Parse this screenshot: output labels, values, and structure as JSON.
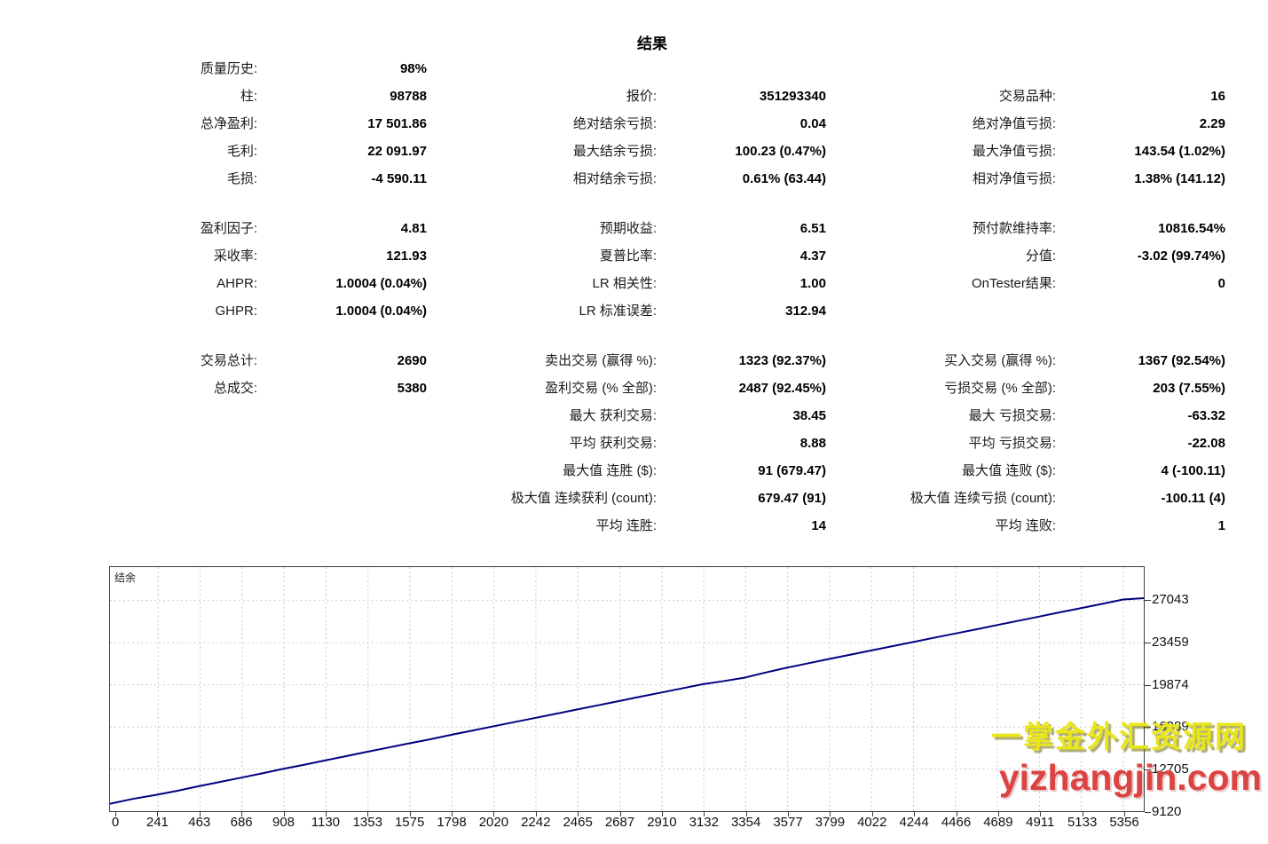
{
  "title": "结果",
  "stats": {
    "rows": [
      [
        "质量历史:",
        "98%",
        "",
        "",
        "",
        ""
      ],
      [
        "柱:",
        "98788",
        "报价:",
        "351293340",
        "交易品种:",
        "16"
      ],
      [
        "总净盈利:",
        "17 501.86",
        "绝对结余亏损:",
        "0.04",
        "绝对净值亏损:",
        "2.29"
      ],
      [
        "毛利:",
        "22 091.97",
        "最大结余亏损:",
        "100.23 (0.47%)",
        "最大净值亏损:",
        "143.54 (1.02%)"
      ],
      [
        "毛损:",
        "-4 590.11",
        "相对结余亏损:",
        "0.61% (63.44)",
        "相对净值亏损:",
        "1.38% (141.12)"
      ],
      null,
      [
        "盈利因子:",
        "4.81",
        "预期收益:",
        "6.51",
        "预付款维持率:",
        "10816.54%"
      ],
      [
        "采收率:",
        "121.93",
        "夏普比率:",
        "4.37",
        "分值:",
        "-3.02 (99.74%)"
      ],
      [
        "AHPR:",
        "1.0004 (0.04%)",
        "LR 相关性:",
        "1.00",
        "OnTester结果:",
        "0"
      ],
      [
        "GHPR:",
        "1.0004 (0.04%)",
        "LR 标准误差:",
        "312.94",
        "",
        ""
      ],
      null,
      [
        "交易总计:",
        "2690",
        "卖出交易 (赢得 %):",
        "1323 (92.37%)",
        "买入交易 (赢得 %):",
        "1367 (92.54%)"
      ],
      [
        "总成交:",
        "5380",
        "盈利交易 (% 全部):",
        "2487 (92.45%)",
        "亏损交易 (% 全部):",
        "203 (7.55%)"
      ],
      [
        "",
        "",
        "最大 获利交易:",
        "38.45",
        "最大 亏损交易:",
        "-63.32"
      ],
      [
        "",
        "",
        "平均 获利交易:",
        "8.88",
        "平均 亏损交易:",
        "-22.08"
      ],
      [
        "",
        "",
        "最大值 连胜 ($):",
        "91 (679.47)",
        "最大值 连败 ($):",
        "4 (-100.11)"
      ],
      [
        "",
        "",
        "极大值 连续获利 (count):",
        "679.47 (91)",
        "极大值 连续亏损 (count):",
        "-100.11 (4)"
      ],
      [
        "",
        "",
        "平均 连胜:",
        "14",
        "平均 连败:",
        "1"
      ]
    ]
  },
  "chart_data": {
    "type": "line",
    "title": "结余",
    "xlabel": "",
    "ylabel": "",
    "grid": "dashed",
    "line_color": "#000080",
    "grid_color": "#c9c9c9",
    "x_ticks": [
      0,
      241,
      463,
      686,
      908,
      1130,
      1353,
      1575,
      1798,
      2020,
      2242,
      2465,
      2687,
      2910,
      3132,
      3354,
      3577,
      3799,
      4022,
      4244,
      4466,
      4689,
      4911,
      5133,
      5356
    ],
    "y_ticks": [
      27043,
      23459,
      19874,
      16289,
      12705,
      9120
    ],
    "x_domain": [
      0,
      5465
    ],
    "y_domain": [
      9120,
      29892
    ],
    "series": [
      {
        "name": "结余",
        "points": [
          [
            0,
            9750
          ],
          [
            120,
            10160
          ],
          [
            241,
            10500
          ],
          [
            360,
            10870
          ],
          [
            463,
            11230
          ],
          [
            580,
            11600
          ],
          [
            686,
            11950
          ],
          [
            800,
            12320
          ],
          [
            908,
            12700
          ],
          [
            1020,
            13050
          ],
          [
            1130,
            13420
          ],
          [
            1240,
            13780
          ],
          [
            1353,
            14150
          ],
          [
            1460,
            14500
          ],
          [
            1575,
            14870
          ],
          [
            1690,
            15230
          ],
          [
            1798,
            15600
          ],
          [
            1900,
            15930
          ],
          [
            2020,
            16320
          ],
          [
            2130,
            16680
          ],
          [
            2242,
            17040
          ],
          [
            2360,
            17420
          ],
          [
            2465,
            17760
          ],
          [
            2580,
            18130
          ],
          [
            2687,
            18480
          ],
          [
            2800,
            18850
          ],
          [
            2910,
            19200
          ],
          [
            3020,
            19560
          ],
          [
            3132,
            19920
          ],
          [
            3240,
            20180
          ],
          [
            3354,
            20480
          ],
          [
            3460,
            20900
          ],
          [
            3577,
            21330
          ],
          [
            3690,
            21700
          ],
          [
            3799,
            22060
          ],
          [
            3910,
            22420
          ],
          [
            4022,
            22790
          ],
          [
            4130,
            23140
          ],
          [
            4244,
            23510
          ],
          [
            4360,
            23890
          ],
          [
            4466,
            24230
          ],
          [
            4580,
            24600
          ],
          [
            4689,
            24960
          ],
          [
            4800,
            25320
          ],
          [
            4911,
            25680
          ],
          [
            5020,
            26040
          ],
          [
            5133,
            26400
          ],
          [
            5240,
            26750
          ],
          [
            5356,
            27130
          ],
          [
            5465,
            27250
          ]
        ]
      }
    ]
  },
  "watermark": {
    "line1": "一掌金外汇资源网",
    "line2": "yizhangjin.com"
  }
}
